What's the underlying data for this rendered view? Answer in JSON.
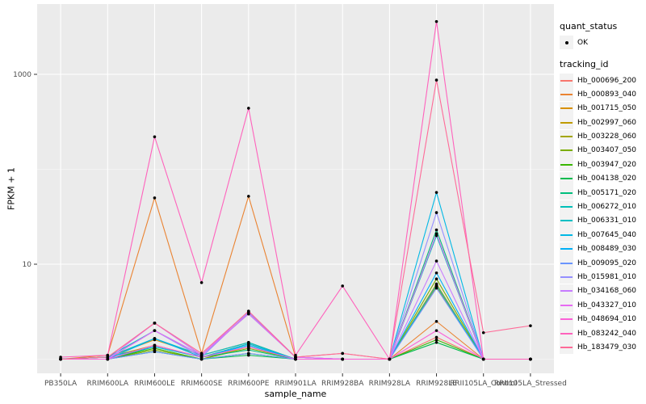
{
  "legend": {
    "quant_status_title": "quant_status",
    "ok_label": "OK",
    "tracking_id_title": "tracking_id"
  },
  "chart_data": {
    "type": "line",
    "title": "",
    "xlabel": "sample_name",
    "ylabel": "FPKM + 1",
    "y_scale": "log10",
    "ylim": [
      0.72,
      5500
    ],
    "y_major_values": [
      10,
      1000
    ],
    "y_major_labels": [
      "10",
      "1000"
    ],
    "y_minor_values": [
      1,
      100
    ],
    "grid": true,
    "legend_position": "right",
    "panel_background": "#EBEBEB",
    "gridline_color": "#FFFFFF",
    "point_color": "#000000",
    "categories": [
      "PB350LA",
      "RRIM600LA",
      "RRIM600LE",
      "RRIM600SE",
      "RRIM600PE",
      "RRIM901LA",
      "RRIM928BA",
      "RRIM928LA",
      "RRIM928LE",
      "RRII105LA_Control",
      "RRII105LA_Stressed"
    ],
    "series": [
      {
        "name": "Hb_000696_200",
        "color": "#F8766D",
        "values": [
          1.0,
          1.05,
          2.4,
          1.1,
          3.2,
          1.05,
          1.15,
          1.0,
          1.7,
          1.0,
          1.0
        ]
      },
      {
        "name": "Hb_000893_040",
        "color": "#EA8331",
        "values": [
          1.0,
          1.1,
          50,
          1.15,
          52,
          1.05,
          1.0,
          1.0,
          2.5,
          1.0,
          1.0
        ]
      },
      {
        "name": "Hb_001715_050",
        "color": "#D89000",
        "values": [
          1.0,
          1.05,
          1.6,
          1.1,
          1.5,
          1.0,
          1.0,
          1.0,
          5.8,
          1.0,
          1.0
        ]
      },
      {
        "name": "Hb_002997_060",
        "color": "#C09B00",
        "values": [
          1.0,
          1.05,
          1.4,
          1.05,
          1.45,
          1.0,
          1.0,
          1.0,
          6.2,
          1.0,
          1.0
        ]
      },
      {
        "name": "Hb_003228_060",
        "color": "#A3A500",
        "values": [
          1.0,
          1.0,
          1.3,
          1.0,
          1.35,
          1.0,
          1.0,
          1.0,
          6.0,
          1.0,
          1.0
        ]
      },
      {
        "name": "Hb_003407_050",
        "color": "#7CAE00",
        "values": [
          1.0,
          1.0,
          1.25,
          1.0,
          1.3,
          1.0,
          1.0,
          1.0,
          7.0,
          1.0,
          1.0
        ]
      },
      {
        "name": "Hb_003947_020",
        "color": "#39B600",
        "values": [
          1.0,
          1.0,
          1.3,
          1.0,
          1.15,
          1.0,
          1.0,
          1.0,
          1.6,
          1.0,
          1.0
        ]
      },
      {
        "name": "Hb_004138_020",
        "color": "#00BB4E",
        "values": [
          1.0,
          1.0,
          1.2,
          1.0,
          1.1,
          1.0,
          1.0,
          1.0,
          1.5,
          1.0,
          1.0
        ]
      },
      {
        "name": "Hb_005171_020",
        "color": "#00BF7D",
        "values": [
          1.0,
          1.0,
          1.35,
          1.05,
          1.25,
          1.0,
          1.0,
          1.0,
          23,
          1.0,
          1.0
        ]
      },
      {
        "name": "Hb_006272_010",
        "color": "#00C0B8",
        "values": [
          1.0,
          1.05,
          2.0,
          1.1,
          3.0,
          1.05,
          1.0,
          1.0,
          20,
          1.0,
          1.0
        ]
      },
      {
        "name": "Hb_006331_010",
        "color": "#00BFC4",
        "values": [
          1.0,
          1.05,
          1.65,
          1.1,
          1.5,
          1.0,
          1.0,
          1.0,
          6.0,
          1.0,
          1.0
        ]
      },
      {
        "name": "Hb_007645_040",
        "color": "#00B8E5",
        "values": [
          1.0,
          1.05,
          1.35,
          1.05,
          1.45,
          1.0,
          1.0,
          1.0,
          57,
          1.0,
          1.0
        ]
      },
      {
        "name": "Hb_008489_030",
        "color": "#00B0F6",
        "values": [
          1.0,
          1.0,
          1.65,
          1.05,
          1.4,
          1.0,
          1.0,
          1.0,
          8.1,
          1.0,
          1.0
        ]
      },
      {
        "name": "Hb_009095_020",
        "color": "#6A95FF",
        "values": [
          1.0,
          1.0,
          1.2,
          1.0,
          1.15,
          1.0,
          1.0,
          1.0,
          5.6,
          1.0,
          1.0
        ]
      },
      {
        "name": "Hb_015981_010",
        "color": "#9590FF",
        "values": [
          1.0,
          1.0,
          2.0,
          1.05,
          3.1,
          1.05,
          1.0,
          1.0,
          35,
          1.0,
          1.0
        ]
      },
      {
        "name": "Hb_034168_060",
        "color": "#C77CFF",
        "values": [
          1.0,
          1.0,
          2.4,
          1.1,
          3.2,
          1.05,
          1.0,
          1.0,
          10.8,
          1.0,
          1.0
        ]
      },
      {
        "name": "Hb_043327_010",
        "color": "#E76BF3",
        "values": [
          1.0,
          1.0,
          2.0,
          1.1,
          3.0,
          1.05,
          1.0,
          1.0,
          21,
          1.0,
          1.0
        ]
      },
      {
        "name": "Hb_048694_010",
        "color": "#FB61D7",
        "values": [
          1.0,
          1.0,
          1.4,
          1.05,
          1.35,
          1.0,
          1.0,
          1.0,
          2.0,
          1.0,
          1.0
        ]
      },
      {
        "name": "Hb_083242_040",
        "color": "#FF62BC",
        "values": [
          1.05,
          1.1,
          220,
          6.4,
          440,
          1.1,
          5.9,
          1.0,
          3600,
          1.0,
          1.0
        ]
      },
      {
        "name": "Hb_183479_030",
        "color": "#FF6A98",
        "values": [
          1.0,
          1.05,
          2.4,
          1.15,
          3.2,
          1.05,
          1.15,
          1.0,
          870,
          1.9,
          2.25
        ]
      }
    ]
  }
}
